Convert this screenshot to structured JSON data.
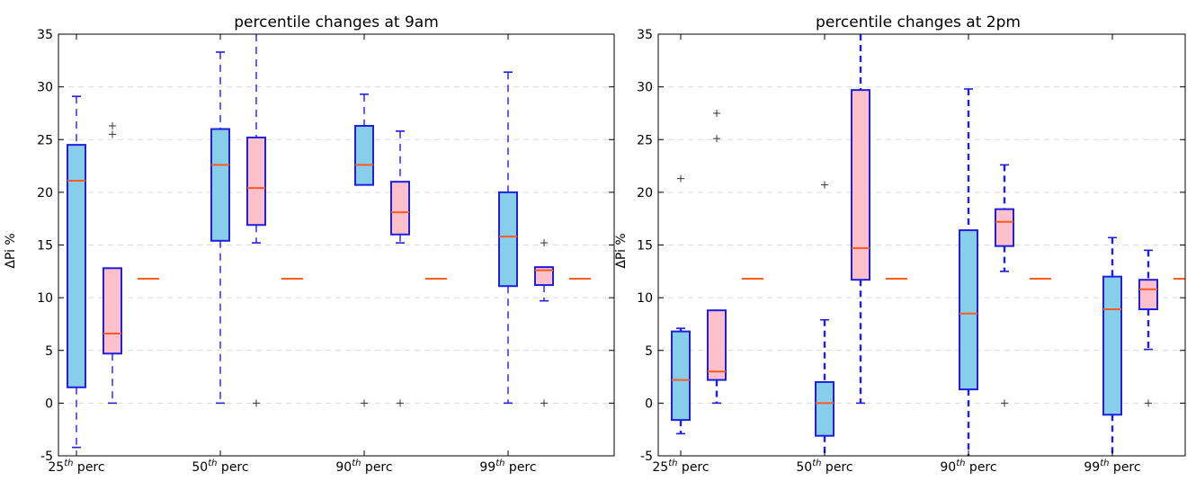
{
  "chart_data": [
    {
      "type": "box",
      "title": "percentile changes at 9am",
      "ylabel": "ΔPi %",
      "ylim": [
        -5,
        35
      ],
      "yticks": [
        -5,
        0,
        5,
        10,
        15,
        20,
        25,
        30,
        35
      ],
      "grid": "horizontal-dashed",
      "categories": [
        {
          "base": "25",
          "sup": "th",
          "suffix": " perc"
        },
        {
          "base": "50",
          "sup": "th",
          "suffix": " perc"
        },
        {
          "base": "90",
          "sup": "th",
          "suffix": " perc"
        },
        {
          "base": "99",
          "sup": "th",
          "suffix": " perc"
        }
      ],
      "reference_level": 11.8,
      "series": [
        {
          "color": "#87ceeb",
          "boxes": [
            {
              "whislo": -4.2,
              "q1": 1.5,
              "med": 21.1,
              "q3": 24.5,
              "whishi": 29.1,
              "fliers": []
            },
            {
              "whislo": 0,
              "q1": 15.4,
              "med": 22.6,
              "q3": 26.0,
              "whishi": 33.3,
              "fliers": []
            },
            {
              "whislo": 20.7,
              "q1": 20.7,
              "med": 22.6,
              "q3": 26.3,
              "whishi": 29.3,
              "fliers": [
                0
              ]
            },
            {
              "whislo": 0,
              "q1": 11.1,
              "med": 15.8,
              "q3": 20.0,
              "whishi": 31.4,
              "fliers": []
            }
          ]
        },
        {
          "color": "#ffc0cb",
          "boxes": [
            {
              "whislo": 0,
              "q1": 4.7,
              "med": 6.6,
              "q3": 12.8,
              "whishi": 12.8,
              "fliers": [
                25.5,
                26.3
              ]
            },
            {
              "whislo": 15.2,
              "q1": 16.9,
              "med": 20.4,
              "q3": 25.2,
              "whishi": 35.0,
              "fliers": [
                0
              ]
            },
            {
              "whislo": 15.2,
              "q1": 16.0,
              "med": 18.1,
              "q3": 21.0,
              "whishi": 25.8,
              "fliers": [
                0
              ]
            },
            {
              "whislo": 9.7,
              "q1": 11.2,
              "med": 12.6,
              "q3": 12.9,
              "whishi": 12.9,
              "fliers": [
                15.2,
                0
              ]
            }
          ]
        }
      ]
    },
    {
      "type": "box",
      "title": "percentile changes at 2pm",
      "ylabel": "ΔPi %",
      "ylim": [
        -5,
        35
      ],
      "yticks": [
        -5,
        0,
        5,
        10,
        15,
        20,
        25,
        30,
        35
      ],
      "grid": "horizontal-dashed",
      "categories": [
        {
          "base": "25",
          "sup": "th",
          "suffix": " perc"
        },
        {
          "base": "50",
          "sup": "th",
          "suffix": " perc"
        },
        {
          "base": "90",
          "sup": "th",
          "suffix": " perc"
        },
        {
          "base": "99",
          "sup": "th",
          "suffix": " perc"
        }
      ],
      "reference_level": 11.8,
      "series": [
        {
          "color": "#87ceeb",
          "boxes": [
            {
              "whislo": -2.9,
              "q1": -1.6,
              "med": 2.2,
              "q3": 6.8,
              "whishi": 7.1,
              "fliers": [
                21.3
              ]
            },
            {
              "whislo": -5.0,
              "q1": -3.1,
              "med": 0,
              "q3": 2.0,
              "whishi": 7.9,
              "fliers": [
                20.7
              ]
            },
            {
              "whislo": -5.0,
              "q1": 1.3,
              "med": 8.5,
              "q3": 16.4,
              "whishi": 29.8,
              "fliers": []
            },
            {
              "whislo": -5.0,
              "q1": -1.1,
              "med": 8.9,
              "q3": 12.0,
              "whishi": 15.7,
              "fliers": []
            }
          ]
        },
        {
          "color": "#ffc0cb",
          "boxes": [
            {
              "whislo": 0,
              "q1": 2.2,
              "med": 3.0,
              "q3": 8.8,
              "whishi": 8.8,
              "fliers": [
                25.1,
                27.5
              ]
            },
            {
              "whislo": 0,
              "q1": 11.7,
              "med": 14.7,
              "q3": 29.7,
              "whishi": 35.0,
              "fliers": []
            },
            {
              "whislo": 12.5,
              "q1": 14.9,
              "med": 17.2,
              "q3": 18.4,
              "whishi": 22.6,
              "fliers": [
                0
              ]
            },
            {
              "whislo": 5.1,
              "q1": 8.9,
              "med": 10.8,
              "q3": 11.7,
              "whishi": 14.5,
              "fliers": [
                0
              ]
            }
          ]
        }
      ]
    }
  ]
}
